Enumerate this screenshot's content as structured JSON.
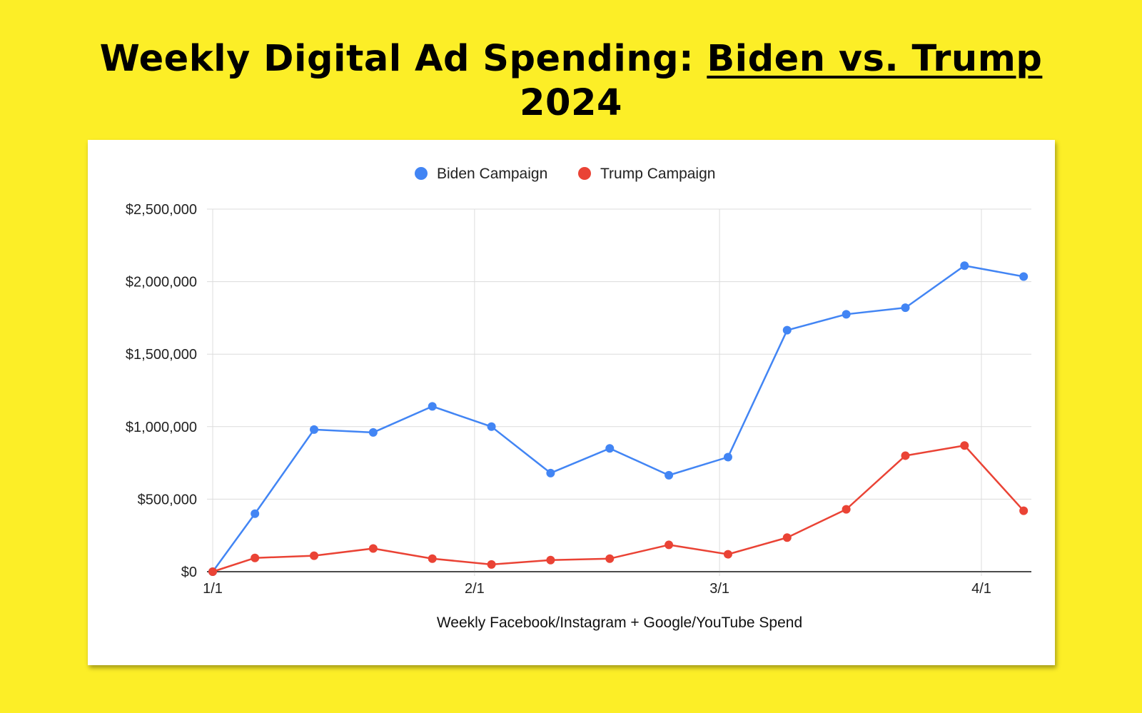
{
  "header": {
    "title_prefix": "Weekly Digital Ad Spending: ",
    "title_underlined": "Biden vs. Trump",
    "title_suffix": "2024"
  },
  "chart_data": {
    "type": "line",
    "title": "Weekly Digital Ad Spending: Biden vs. Trump 2024",
    "xlabel": "Weekly Facebook/Instagram + Google/YouTube Spend",
    "ylabel": "",
    "x_ticks": [
      "1/1",
      "2/1",
      "3/1",
      "4/1"
    ],
    "y_ticks": [
      "$0",
      "$500,000",
      "$1,000,000",
      "$1,500,000",
      "$2,000,000",
      "$2,500,000"
    ],
    "ylim": [
      0,
      2500000
    ],
    "grid": true,
    "legend_position": "top-center",
    "x": [
      "2024-01-01",
      "2024-01-06",
      "2024-01-13",
      "2024-01-20",
      "2024-01-27",
      "2024-02-03",
      "2024-02-10",
      "2024-02-17",
      "2024-02-24",
      "2024-03-02",
      "2024-03-09",
      "2024-03-16",
      "2024-03-23",
      "2024-03-30",
      "2024-04-06"
    ],
    "series": [
      {
        "name": "Biden Campaign",
        "color": "#4285f4",
        "values": [
          0,
          400000,
          980000,
          960000,
          1140000,
          1000000,
          680000,
          850000,
          665000,
          790000,
          1665000,
          1775000,
          1820000,
          2110000,
          2035000
        ]
      },
      {
        "name": "Trump Campaign",
        "color": "#ea4335",
        "values": [
          0,
          95000,
          110000,
          160000,
          90000,
          50000,
          80000,
          90000,
          185000,
          120000,
          235000,
          430000,
          800000,
          870000,
          420000
        ]
      }
    ]
  }
}
